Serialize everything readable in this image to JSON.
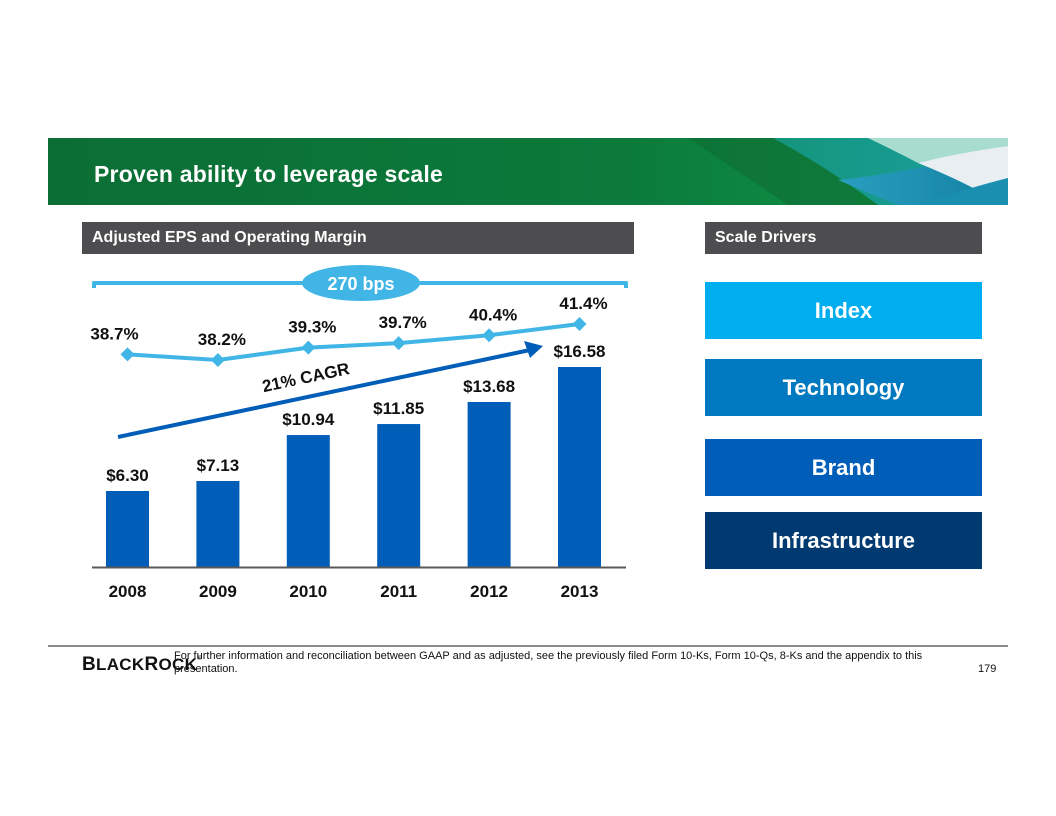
{
  "slide": {
    "title": "Proven ability to leverage scale",
    "left_header": "Adjusted EPS and Operating Margin",
    "right_header": "Scale Drivers",
    "drivers": [
      {
        "label": "Index",
        "color": "#00adef"
      },
      {
        "label": "Technology",
        "color": "#0079c1"
      },
      {
        "label": "Brand",
        "color": "#005eb8"
      },
      {
        "label": "Infrastructure",
        "color": "#003a70"
      }
    ],
    "footer": {
      "logo": "BlackRock",
      "footnote": "For further information and reconciliation between GAAP and as adjusted, see the previously filed Form 10-Ks, Form 10-Qs, 8-Ks and the appendix to this presentation.",
      "page_number": "179"
    }
  },
  "chart_data": {
    "type": "bar",
    "title": "Adjusted EPS and Operating Margin",
    "categories": [
      "2008",
      "2009",
      "2010",
      "2011",
      "2012",
      "2013"
    ],
    "series": [
      {
        "name": "Adjusted EPS",
        "kind": "bar",
        "unit": "$",
        "color": "#005eb8",
        "values": [
          6.3,
          7.13,
          10.94,
          11.85,
          13.68,
          16.58
        ],
        "labels": [
          "$6.30",
          "$7.13",
          "$10.94",
          "$11.85",
          "$13.68",
          "$16.58"
        ]
      },
      {
        "name": "Operating Margin",
        "kind": "line",
        "unit": "%",
        "color": "#41b6e6",
        "values": [
          38.7,
          38.2,
          39.3,
          39.7,
          40.4,
          41.4
        ],
        "labels": [
          "38.7%",
          "38.2%",
          "39.3%",
          "39.7%",
          "40.4%",
          "41.4%"
        ]
      }
    ],
    "annotations": {
      "margin_expansion": "270 bps",
      "eps_growth": "21% CAGR"
    },
    "ylim_eps": [
      0,
      16.58
    ],
    "ylim_margin": [
      36.5,
      42.0
    ],
    "xlabel": "",
    "ylabel": "",
    "grid": false,
    "legend": "none"
  }
}
